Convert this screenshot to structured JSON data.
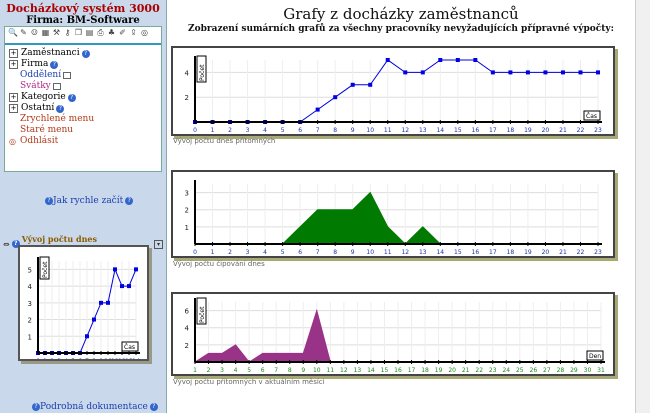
{
  "app": {
    "title": "Docházkový systém 3000",
    "firm": "Firma: BM-Software"
  },
  "toolbar": {
    "icons": [
      "search-icon",
      "pencil-icon",
      "people-icon",
      "table-icon",
      "tools-icon",
      "key-icon",
      "copy-icon",
      "document-icon",
      "print-icon",
      "tree-icon",
      "edit-icon",
      "export-icon",
      "target-icon"
    ]
  },
  "menu": {
    "items": [
      {
        "label": "Zaměstnanci",
        "type": "expand"
      },
      {
        "label": "Firma",
        "type": "expand"
      },
      {
        "label": "Oddělení",
        "type": "sub"
      },
      {
        "label": "Svátky",
        "type": "sub"
      },
      {
        "label": "Kategorie",
        "type": "expand"
      },
      {
        "label": "Ostatní",
        "type": "expand"
      },
      {
        "label": "Zrychlené menu",
        "type": "red"
      },
      {
        "label": "Staré menu",
        "type": "red"
      },
      {
        "label": "Odhlásit",
        "type": "logout"
      }
    ]
  },
  "help": {
    "quick_start": "Jak rychle začít",
    "docs": "Podrobná dokumentace"
  },
  "mini": {
    "title": "Vývoj počtu dnes přítomných"
  },
  "page": {
    "title": "Grafy z docházky zaměstnanců",
    "subtitle": "Zobrazení sumárních grafů za všechny pracovníky nevyžadujících přípravné výpočty:"
  },
  "captions": {
    "c1": "Vývoj počtu dnes přítomných",
    "c2": "Vývoj počtu čipování dnes",
    "c3": "Vývoj počtu přítomných v aktuálním měsíci"
  },
  "chart_data": [
    {
      "type": "line",
      "ylabel": "Počet",
      "xlabel": "Čas",
      "x": [
        0,
        1,
        2,
        3,
        4,
        5,
        6,
        7,
        8,
        9,
        10,
        11,
        12,
        13,
        14,
        15,
        16,
        17,
        18,
        19,
        20,
        21,
        22,
        23
      ],
      "values": [
        0,
        0,
        0,
        0,
        0,
        0,
        0,
        1,
        2,
        3,
        3,
        5,
        4,
        4,
        5,
        5,
        5,
        4,
        4,
        4,
        4,
        4,
        4,
        4
      ],
      "ylim": [
        0,
        5
      ],
      "yticks": [
        2,
        4
      ],
      "color": "#0000e0"
    },
    {
      "type": "area",
      "x": [
        0,
        1,
        2,
        3,
        4,
        5,
        6,
        7,
        8,
        9,
        10,
        11,
        12,
        13,
        14,
        15,
        16,
        17,
        18,
        19,
        20,
        21,
        22,
        23
      ],
      "values": [
        0,
        0,
        0,
        0,
        0,
        0,
        1,
        2,
        2,
        2,
        3,
        1,
        0,
        1,
        0,
        0,
        0,
        0,
        0,
        0,
        0,
        0,
        0,
        0
      ],
      "ylim": [
        0,
        3.5
      ],
      "yticks": [
        1,
        2,
        3
      ],
      "color": "#007a00"
    },
    {
      "type": "area",
      "ylabel": "Počet",
      "xlabel": "Den",
      "x": [
        1,
        2,
        3,
        4,
        5,
        6,
        7,
        8,
        9,
        10,
        11,
        12,
        13,
        14,
        15,
        16,
        17,
        18,
        19,
        20,
        21,
        22,
        23,
        24,
        25,
        26,
        27,
        28,
        29,
        30,
        31
      ],
      "values": [
        0,
        1,
        1,
        2,
        0,
        1,
        1,
        1,
        1,
        6,
        0,
        0,
        0,
        0,
        0,
        0,
        0,
        0,
        0,
        0,
        0,
        0,
        0,
        0,
        0,
        0,
        0,
        0,
        0,
        0,
        0
      ],
      "ylim": [
        0,
        7
      ],
      "yticks": [
        2,
        4,
        6
      ],
      "color": "#993388"
    },
    {
      "type": "line",
      "ylabel": "Počet",
      "xlabel": "Čas",
      "x": [
        0,
        1,
        2,
        3,
        4,
        5,
        6,
        7,
        8,
        9,
        10,
        11,
        12,
        13,
        14
      ],
      "values": [
        0,
        0,
        0,
        0,
        0,
        0,
        0,
        1,
        2,
        3,
        3,
        5,
        4,
        4,
        5
      ],
      "ylim": [
        0,
        5.5
      ],
      "yticks": [
        1,
        2,
        3,
        4,
        5
      ],
      "color": "#0000e0"
    }
  ]
}
